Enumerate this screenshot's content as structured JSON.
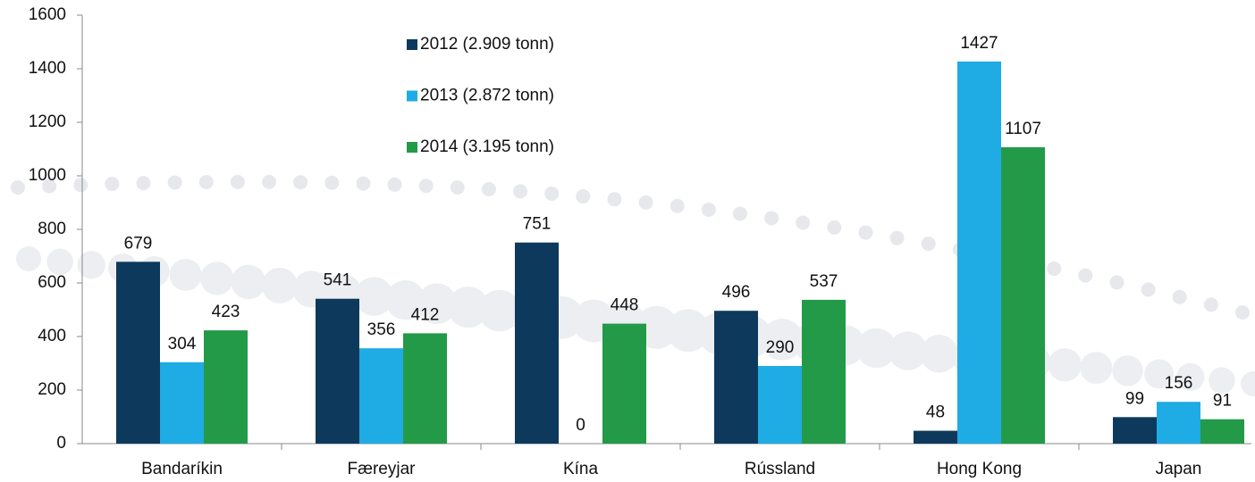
{
  "chart_data": {
    "type": "bar",
    "categories": [
      "Bandaríkin",
      "Færeyjar",
      "Kína",
      "Rússland",
      "Hong Kong",
      "Japan"
    ],
    "series": [
      {
        "name": "2012 (2.909 tonn)",
        "color": "#0d3a5c",
        "values": [
          679,
          541,
          751,
          496,
          48,
          99
        ]
      },
      {
        "name": "2013 (2.872 tonn)",
        "color": "#1fabe3",
        "values": [
          304,
          356,
          0,
          290,
          1427,
          156
        ]
      },
      {
        "name": "2014 (3.195 tonn)",
        "color": "#239a48",
        "values": [
          423,
          412,
          448,
          537,
          1107,
          91
        ]
      }
    ],
    "ylim": [
      0,
      1600
    ],
    "yticks": [
      0,
      200,
      400,
      600,
      800,
      1000,
      1200,
      1400,
      1600
    ],
    "legend": "top"
  }
}
